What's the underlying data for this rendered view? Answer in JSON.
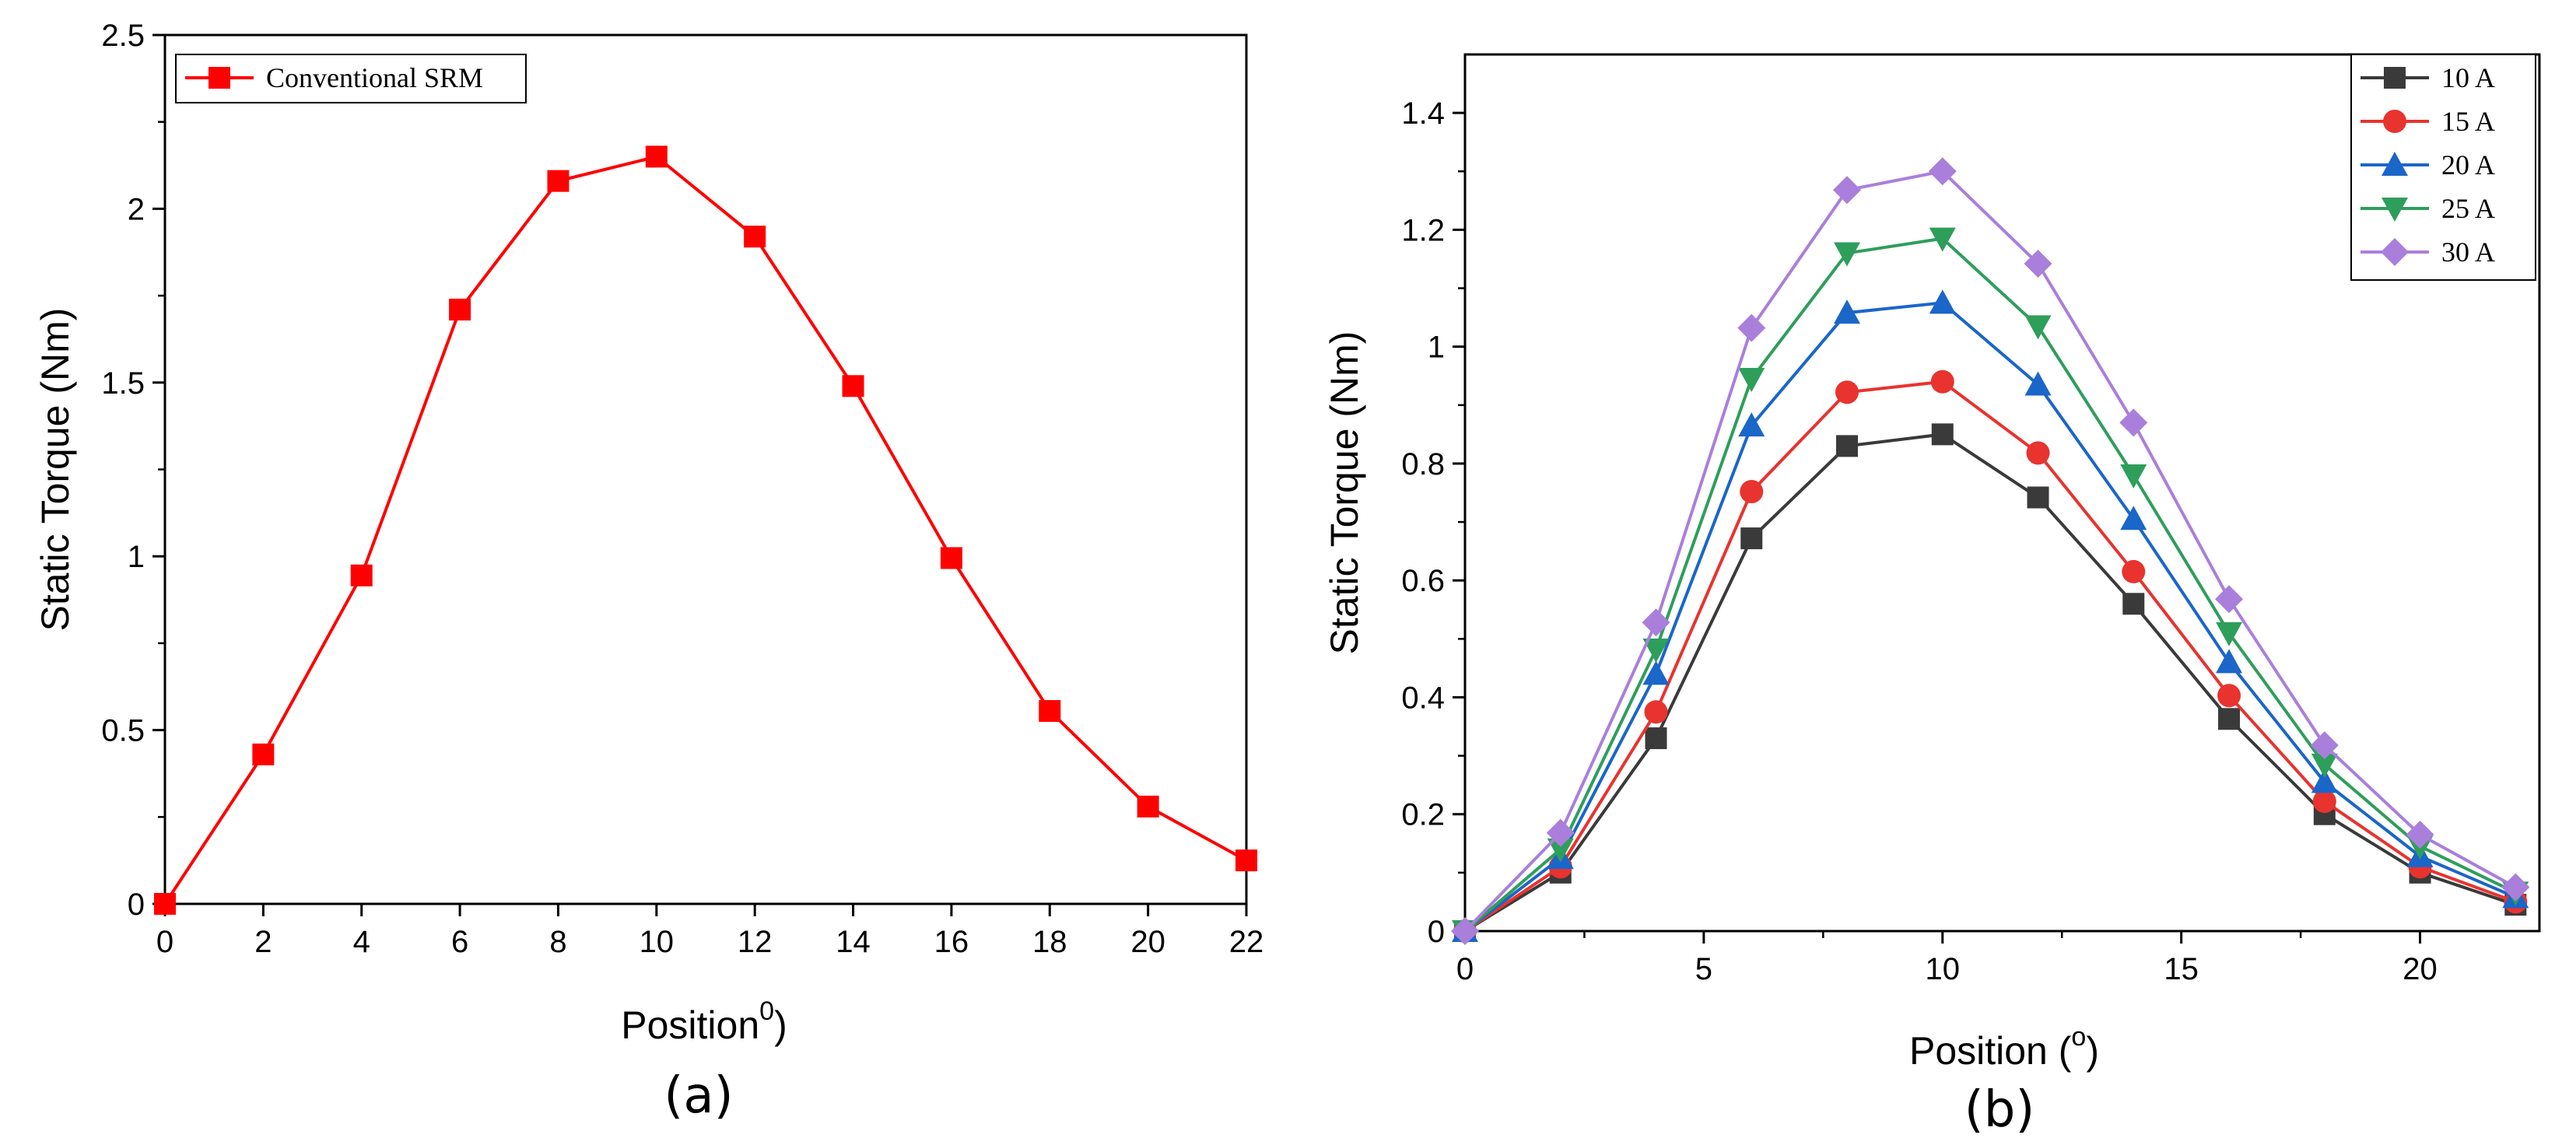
{
  "chart_data": [
    {
      "type": "line",
      "panel_label": "(a)",
      "xlabel": "Position",
      "xlabel_sup": "0",
      "xlabel_close": ")",
      "ylabel": "Static Torque (Nm)",
      "xlim": [
        0,
        22
      ],
      "ylim": [
        0,
        2.5
      ],
      "xticks": [
        0,
        2,
        4,
        6,
        8,
        10,
        12,
        14,
        16,
        18,
        20,
        22
      ],
      "yticks": [
        0,
        0.5,
        1,
        1.5,
        2,
        2.5
      ],
      "ytick_labels": [
        "0",
        "0.5",
        "1",
        "1.5",
        "2",
        "2.5"
      ],
      "legend_placement": "top-left",
      "x": [
        0,
        2,
        4,
        6,
        8,
        10,
        12,
        14,
        16,
        18,
        20,
        22
      ],
      "series": [
        {
          "name": "Conventional SRM",
          "color": "#ff0000",
          "marker": "square",
          "values": [
            0,
            0.43,
            0.945,
            1.71,
            2.08,
            2.15,
            1.92,
            1.49,
            0.995,
            0.555,
            0.28,
            0.125
          ]
        }
      ]
    },
    {
      "type": "line",
      "panel_label": "(b)",
      "xlabel": "Position (",
      "xlabel_sup": "o",
      "xlabel_close": ")",
      "ylabel": "Static Torque (Nm)",
      "xlim": [
        0,
        22.5
      ],
      "ylim": [
        0,
        1.5
      ],
      "xticks": [
        0,
        5,
        10,
        15,
        20
      ],
      "yticks": [
        0,
        0.2,
        0.4,
        0.6,
        0.8,
        1.0,
        1.2,
        1.4
      ],
      "ytick_labels": [
        "0",
        "0.2",
        "0.4",
        "0.6",
        "0.8",
        "1",
        "1.2",
        "1.4"
      ],
      "legend_placement": "top-right",
      "x": [
        0,
        2,
        4,
        6,
        8,
        10,
        12,
        14,
        16,
        18,
        20,
        22
      ],
      "series": [
        {
          "name": "10 A",
          "color": "#3a3a3a",
          "marker": "square",
          "values": [
            0,
            0.1,
            0.33,
            0.672,
            0.83,
            0.85,
            0.742,
            0.56,
            0.363,
            0.2,
            0.1,
            0.045
          ]
        },
        {
          "name": "15 A",
          "color": "#e8332f",
          "marker": "circle",
          "values": [
            0,
            0.11,
            0.375,
            0.752,
            0.922,
            0.94,
            0.818,
            0.615,
            0.403,
            0.222,
            0.11,
            0.05
          ]
        },
        {
          "name": "20 A",
          "color": "#1a66c9",
          "marker": "triangle-up",
          "values": [
            0,
            0.125,
            0.44,
            0.865,
            1.058,
            1.075,
            0.935,
            0.705,
            0.46,
            0.255,
            0.128,
            0.058
          ]
        },
        {
          "name": "25 A",
          "color": "#2e9e5b",
          "marker": "triangle-down",
          "values": [
            0,
            0.14,
            0.482,
            0.945,
            1.16,
            1.185,
            1.035,
            0.78,
            0.51,
            0.285,
            0.145,
            0.066
          ]
        },
        {
          "name": "30 A",
          "color": "#a97fdb",
          "marker": "diamond",
          "values": [
            0,
            0.168,
            0.528,
            1.032,
            1.268,
            1.3,
            1.142,
            0.87,
            0.568,
            0.318,
            0.165,
            0.075
          ]
        }
      ]
    }
  ]
}
